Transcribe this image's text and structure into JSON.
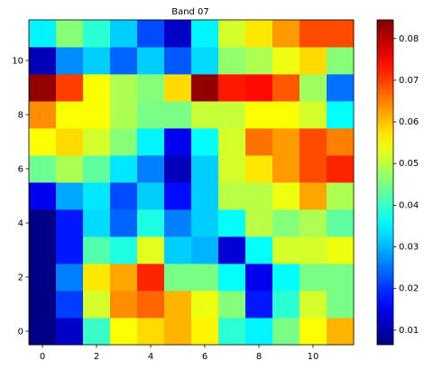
{
  "chart_data": {
    "type": "heatmap",
    "title": "Band 07",
    "xlabel": "",
    "ylabel": "",
    "x_ticks": [
      "0",
      "2",
      "4",
      "6",
      "8",
      "10"
    ],
    "y_ticks": [
      "0",
      "2",
      "4",
      "6",
      "8",
      "10"
    ],
    "colormap": "jet",
    "vmin": 0.0065,
    "vmax": 0.0845,
    "colorbar_ticks": [
      "0.01",
      "0.02",
      "0.03",
      "0.04",
      "0.05",
      "0.06",
      "0.07",
      "0.08"
    ],
    "rows": 12,
    "cols": 12,
    "z_row_order": "row 0 = y 0 (bottom) to row 11 = y 11 (top)",
    "z": [
      [
        0.007,
        0.012,
        0.04,
        0.055,
        0.058,
        0.061,
        0.056,
        0.039,
        0.035,
        0.045,
        0.055,
        0.061
      ],
      [
        0.007,
        0.021,
        0.052,
        0.064,
        0.067,
        0.061,
        0.054,
        0.046,
        0.018,
        0.039,
        0.052,
        0.045
      ],
      [
        0.007,
        0.026,
        0.057,
        0.062,
        0.072,
        0.045,
        0.045,
        0.036,
        0.015,
        0.036,
        0.045,
        0.045
      ],
      [
        0.007,
        0.018,
        0.042,
        0.038,
        0.053,
        0.032,
        0.03,
        0.013,
        0.036,
        0.052,
        0.052,
        0.054
      ],
      [
        0.007,
        0.018,
        0.033,
        0.024,
        0.038,
        0.026,
        0.032,
        0.036,
        0.05,
        0.046,
        0.049,
        0.043
      ],
      [
        0.015,
        0.029,
        0.034,
        0.022,
        0.032,
        0.017,
        0.032,
        0.05,
        0.05,
        0.054,
        0.062,
        0.049
      ],
      [
        0.044,
        0.049,
        0.043,
        0.034,
        0.026,
        0.011,
        0.032,
        0.052,
        0.057,
        0.063,
        0.069,
        0.072
      ],
      [
        0.055,
        0.058,
        0.052,
        0.046,
        0.035,
        0.015,
        0.036,
        0.052,
        0.066,
        0.063,
        0.069,
        0.065
      ],
      [
        0.064,
        0.055,
        0.055,
        0.049,
        0.045,
        0.045,
        0.051,
        0.051,
        0.055,
        0.055,
        0.052,
        0.036
      ],
      [
        0.083,
        0.07,
        0.055,
        0.049,
        0.046,
        0.058,
        0.083,
        0.073,
        0.074,
        0.068,
        0.048,
        0.025
      ],
      [
        0.011,
        0.027,
        0.032,
        0.024,
        0.032,
        0.023,
        0.033,
        0.047,
        0.049,
        0.054,
        0.058,
        0.046
      ],
      [
        0.035,
        0.046,
        0.039,
        0.032,
        0.022,
        0.012,
        0.035,
        0.052,
        0.057,
        0.063,
        0.069,
        0.069
      ]
    ]
  }
}
